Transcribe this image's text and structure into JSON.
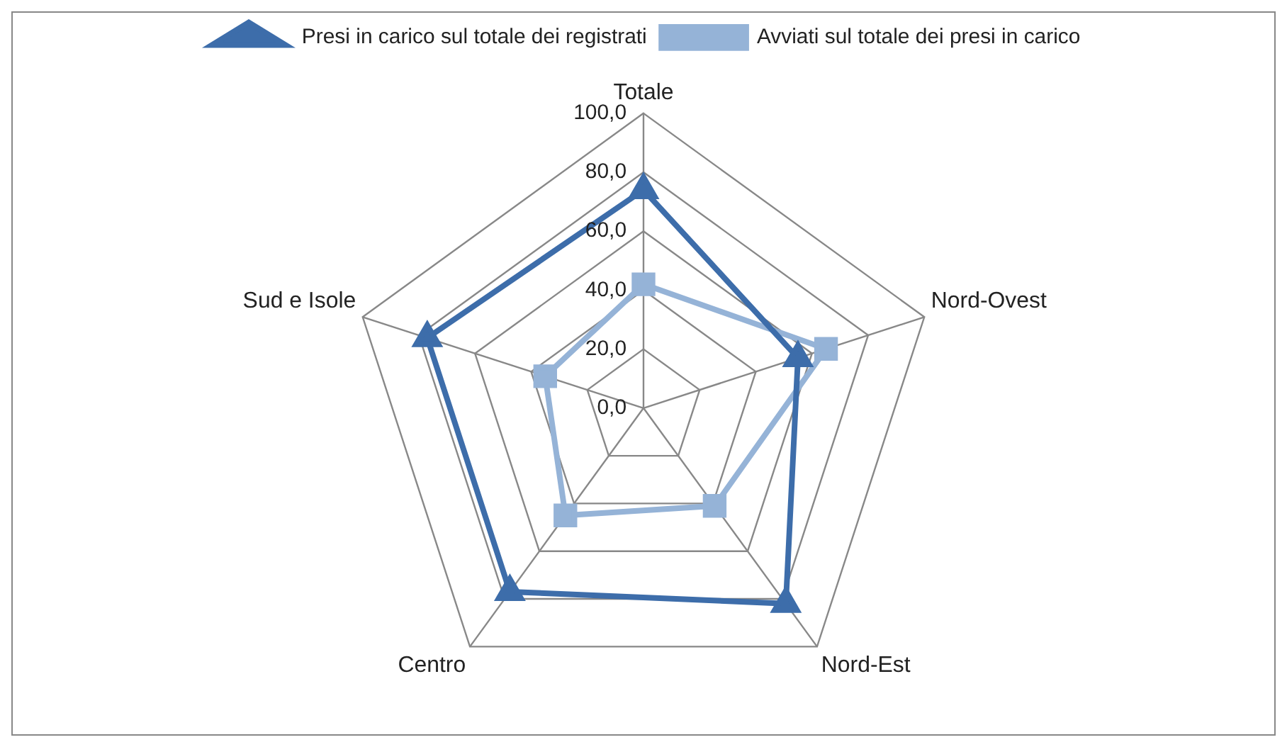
{
  "chart_data": {
    "type": "radar",
    "categories": [
      "Totale",
      "Nord-Ovest",
      "Nord-Est",
      "Centro",
      "Sud e Isole"
    ],
    "series": [
      {
        "name": "Presi in carico sul totale dei registrati",
        "color": "#3d6daa",
        "marker": "triangle",
        "values": [
          74,
          55,
          82,
          77,
          77
        ]
      },
      {
        "name": "Avviati sul totale dei presi in carico",
        "color": "#95b3d7",
        "marker": "square",
        "values": [
          42,
          65,
          41,
          45,
          35
        ]
      }
    ],
    "ylim": [
      0,
      100
    ],
    "yticks": [
      {
        "value": 0,
        "label": "0,0"
      },
      {
        "value": 20,
        "label": "20,0"
      },
      {
        "value": 40,
        "label": "40,0"
      },
      {
        "value": 60,
        "label": "60,0"
      },
      {
        "value": 80,
        "label": "80,0"
      },
      {
        "value": 100,
        "label": "100,0"
      }
    ],
    "grid": true,
    "legend": "top"
  }
}
